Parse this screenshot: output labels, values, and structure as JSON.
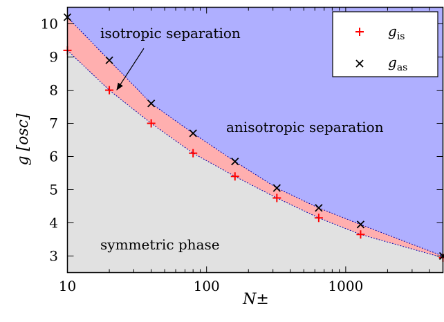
{
  "chart_data": {
    "type": "scatter",
    "xscale": "log",
    "xlim": [
      10,
      5000
    ],
    "ylim": [
      2.5,
      10.5
    ],
    "xticks": [
      10,
      100,
      1000
    ],
    "xtick_labels": [
      "10",
      "100",
      "1000"
    ],
    "yticks": [
      3,
      4,
      5,
      6,
      7,
      8,
      9,
      10
    ],
    "ytick_labels": [
      "3",
      "4",
      "5",
      "6",
      "7",
      "8",
      "9",
      "10"
    ],
    "xlabel": "N±",
    "ylabel": "g [osc]",
    "grid": false,
    "legend_position": "top-right",
    "series": [
      {
        "name": "g_is",
        "label_base": "g",
        "label_sub": "is",
        "marker": "plus",
        "color": "#ff0000",
        "x": [
          10,
          20,
          40,
          80,
          160,
          320,
          640,
          1280,
          5000
        ],
        "y": [
          9.2,
          8.0,
          7.0,
          6.1,
          5.4,
          4.75,
          4.15,
          3.65,
          2.95
        ]
      },
      {
        "name": "g_as",
        "label_base": "g",
        "label_sub": "as",
        "marker": "cross",
        "color": "#000000",
        "x": [
          10,
          20,
          40,
          80,
          160,
          320,
          640,
          1280,
          5000
        ],
        "y": [
          10.2,
          8.9,
          7.6,
          6.7,
          5.85,
          5.05,
          4.45,
          3.95,
          3.0
        ]
      }
    ],
    "regions": {
      "anisotropic": {
        "label": "anisotropic separation",
        "color": "#afafff"
      },
      "isotropic": {
        "label": "isotropic separation",
        "color": "#ffafaf"
      },
      "symmetric": {
        "label": "symmetric phase",
        "color": "#e1e1e1"
      }
    }
  }
}
